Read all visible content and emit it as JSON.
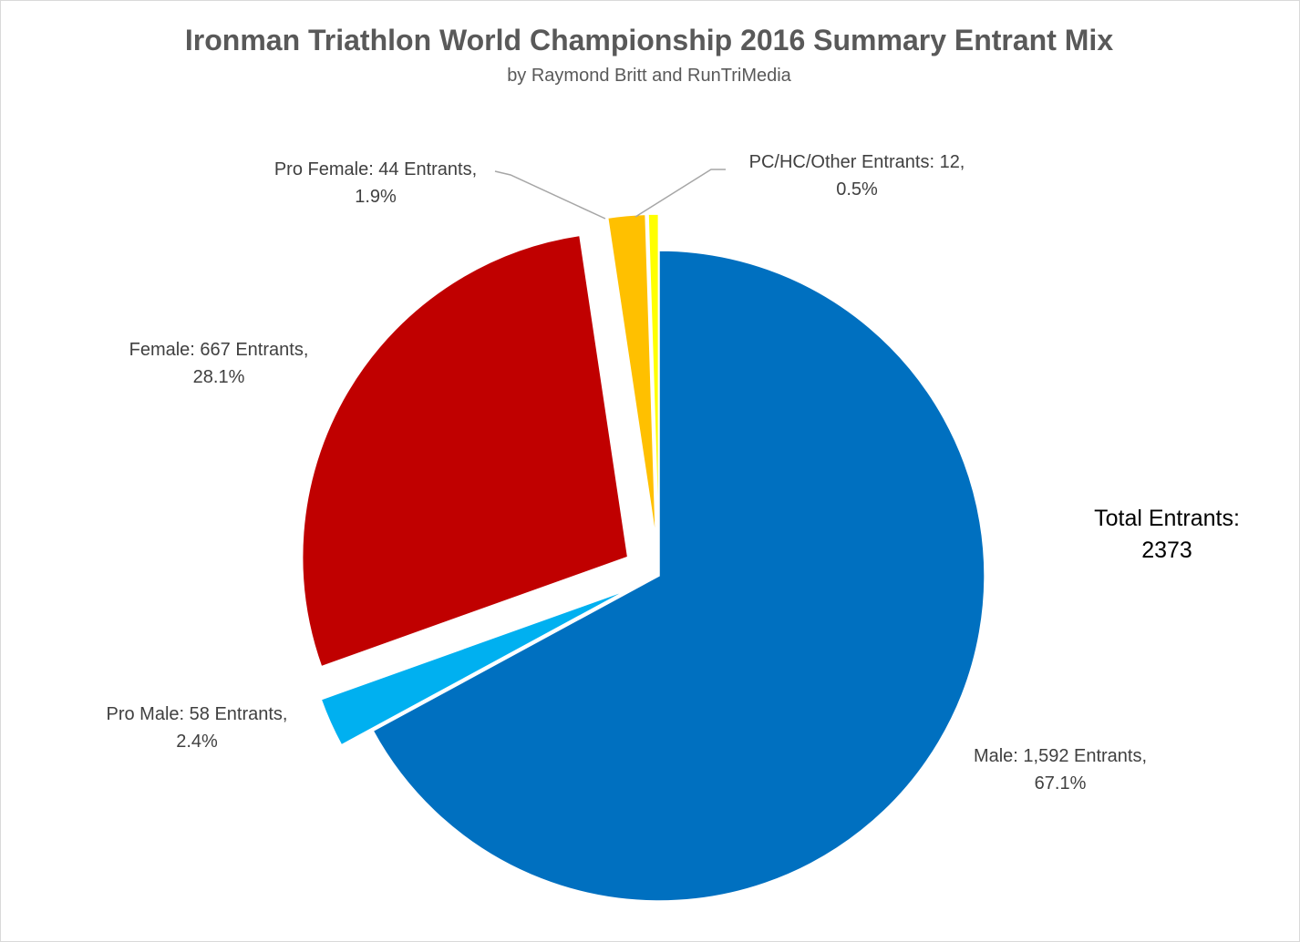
{
  "chart_data": {
    "type": "pie",
    "title": "Ironman Triathlon World Championship 2016 Summary Entrant Mix",
    "subtitle": "by Raymond Britt and RunTriMedia",
    "annotation": {
      "line1": "Total Entrants:",
      "line2": "2373"
    },
    "slices": [
      {
        "name": "Male",
        "value": 1592,
        "percent": 67.1,
        "color": "#0070C0",
        "label_line1": "Male: 1,592 Entrants,",
        "label_line2": "67.1%"
      },
      {
        "name": "Pro Male",
        "value": 58,
        "percent": 2.4,
        "color": "#00B0F0",
        "label_line1": "Pro Male: 58 Entrants,",
        "label_line2": "2.4%"
      },
      {
        "name": "Female",
        "value": 667,
        "percent": 28.1,
        "color": "#C00000",
        "label_line1": "Female: 667 Entrants,",
        "label_line2": "28.1%"
      },
      {
        "name": "Pro Female",
        "value": 44,
        "percent": 1.9,
        "color": "#FFC000",
        "label_line1": "Pro Female: 44 Entrants,",
        "label_line2": "1.9%"
      },
      {
        "name": "PC/HC/Other",
        "value": 12,
        "percent": 0.5,
        "color": "#FFFF00",
        "label_line1": "PC/HC/Other Entrants: 12,",
        "label_line2": "0.5%"
      }
    ],
    "legend": "none",
    "grid": false
  }
}
